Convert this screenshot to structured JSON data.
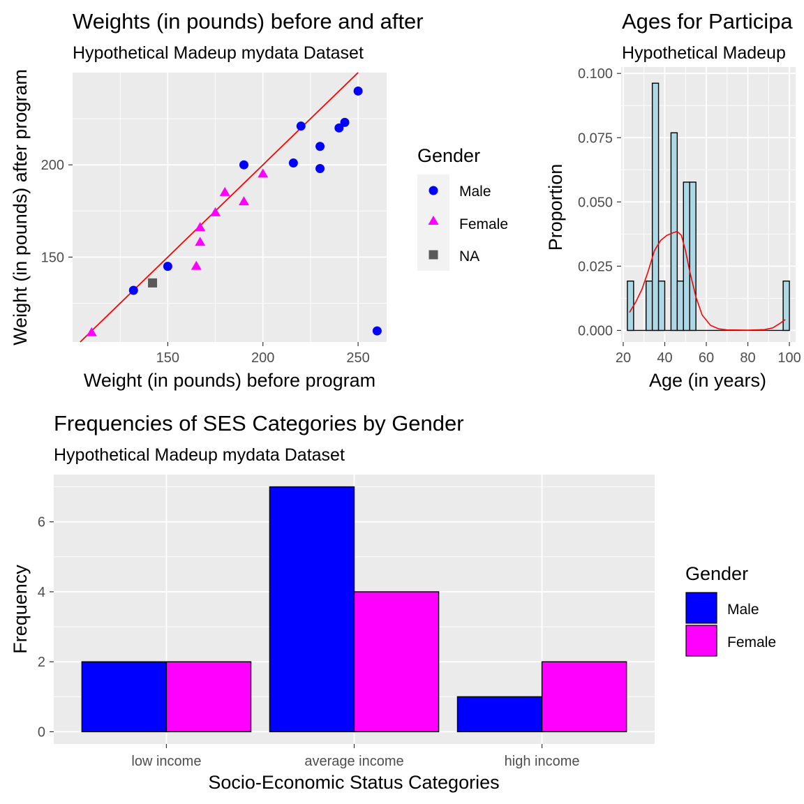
{
  "colors": {
    "male": "#0000ff",
    "female": "#ff00ff",
    "na": "#595959",
    "panel_bg": "#ebebeb",
    "grid": "#ffffff",
    "hist_fill": "#add8e6",
    "line": "#ff0000"
  },
  "chart_data": [
    {
      "type": "scatter",
      "title": "Weights (in pounds) before and after",
      "subtitle": "Hypothetical Madeup mydata Dataset",
      "xlabel": "Weight (in pounds) before program",
      "ylabel": "Weight (in pounds) after program",
      "xlim": [
        100,
        265
      ],
      "ylim": [
        104,
        250
      ],
      "xticks": [
        150,
        200,
        250
      ],
      "xtick_labels": [
        "150",
        "200",
        "250"
      ],
      "yticks": [
        150,
        200
      ],
      "ytick_labels": [
        "150",
        "200"
      ],
      "grid": true,
      "legend_title": "Gender",
      "legend_position": "right",
      "series": [
        {
          "name": "Male",
          "shape": "circle",
          "color": "#0000ff",
          "points": [
            [
              132,
              132
            ],
            [
              150,
              145
            ],
            [
              190,
              200
            ],
            [
              216,
              201
            ],
            [
              220,
              221
            ],
            [
              230,
              210
            ],
            [
              230,
              198
            ],
            [
              240,
              220
            ],
            [
              243,
              223
            ],
            [
              250,
              240
            ],
            [
              260,
              110
            ]
          ]
        },
        {
          "name": "Female",
          "shape": "triangle",
          "color": "#ff00ff",
          "points": [
            [
              110,
              109
            ],
            [
              165,
              145
            ],
            [
              167,
              158
            ],
            [
              167,
              166
            ],
            [
              175,
              174
            ],
            [
              180,
              185
            ],
            [
              190,
              180
            ],
            [
              200,
              195
            ]
          ]
        },
        {
          "name": "NA",
          "shape": "square",
          "color": "#595959",
          "points": [
            [
              142,
              136
            ]
          ]
        }
      ],
      "reference_line": {
        "intercept": 0,
        "slope": 1,
        "color": "#ff0000"
      }
    },
    {
      "type": "histogram",
      "title": "Ages for Participa",
      "subtitle": "Hypothetical Madeup",
      "xlabel": "Age (in years)",
      "ylabel": "Proportion",
      "xlim": [
        19,
        103
      ],
      "ylim": [
        -0.0045,
        0.1025
      ],
      "xticks": [
        20,
        40,
        60,
        80,
        100
      ],
      "xtick_labels": [
        "20",
        "40",
        "60",
        "80",
        "100"
      ],
      "yticks": [
        0,
        0.025,
        0.05,
        0.075,
        0.1
      ],
      "ytick_labels": [
        "0.000",
        "0.025",
        "0.050",
        "0.075",
        "0.100"
      ],
      "grid": true,
      "bin_width": 3,
      "bins": [
        {
          "x0": 22,
          "x1": 25,
          "value": 0.0192
        },
        {
          "x0": 25,
          "x1": 28,
          "value": 0
        },
        {
          "x0": 28,
          "x1": 31,
          "value": 0
        },
        {
          "x0": 31,
          "x1": 34,
          "value": 0.0192
        },
        {
          "x0": 34,
          "x1": 37,
          "value": 0.0962
        },
        {
          "x0": 37,
          "x1": 40,
          "value": 0.0192
        },
        {
          "x0": 40,
          "x1": 43,
          "value": 0
        },
        {
          "x0": 43,
          "x1": 46,
          "value": 0.0769
        },
        {
          "x0": 46,
          "x1": 49,
          "value": 0.0192
        },
        {
          "x0": 49,
          "x1": 52,
          "value": 0.0577
        },
        {
          "x0": 52,
          "x1": 55,
          "value": 0.0577
        },
        {
          "x0": 97,
          "x1": 100,
          "value": 0.0192
        }
      ],
      "density_curve": {
        "color": "#ff0000",
        "points": [
          [
            23,
            0.007
          ],
          [
            26,
            0.011
          ],
          [
            29,
            0.016
          ],
          [
            32,
            0.023
          ],
          [
            35,
            0.031
          ],
          [
            38,
            0.035
          ],
          [
            41,
            0.037
          ],
          [
            44,
            0.038
          ],
          [
            46,
            0.0385
          ],
          [
            48,
            0.037
          ],
          [
            50,
            0.031
          ],
          [
            52,
            0.023
          ],
          [
            55,
            0.013
          ],
          [
            58,
            0.006
          ],
          [
            62,
            0.002
          ],
          [
            66,
            0.0006
          ],
          [
            70,
            0.0002
          ],
          [
            80,
            0.0001
          ],
          [
            88,
            0.0003
          ],
          [
            92,
            0.001
          ],
          [
            95,
            0.0025
          ],
          [
            98,
            0.0042
          ]
        ]
      }
    },
    {
      "type": "bar",
      "title": "Frequencies of SES Categories by Gender",
      "subtitle": "Hypothetical Madeup mydata Dataset",
      "xlabel": "Socio-Economic Status Categories",
      "ylabel": "Frequency",
      "categories": [
        "low income",
        "average income",
        "high income"
      ],
      "series": [
        {
          "name": "Male",
          "color": "#0000ff",
          "values": [
            2,
            7,
            1
          ]
        },
        {
          "name": "Female",
          "color": "#ff00ff",
          "values": [
            2,
            4,
            2
          ]
        }
      ],
      "ylim": [
        -0.35,
        7.35
      ],
      "yticks": [
        0,
        2,
        4,
        6
      ],
      "ytick_labels": [
        "0",
        "2",
        "4",
        "6"
      ],
      "grid": true,
      "legend_title": "Gender",
      "legend_position": "right"
    }
  ]
}
